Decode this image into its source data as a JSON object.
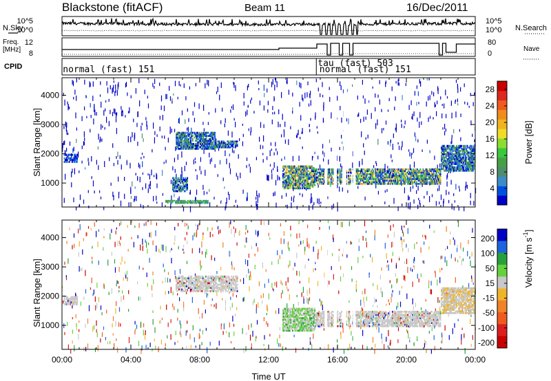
{
  "header": {
    "station": "Blackstone (fitACF)",
    "beam": "Beam 11",
    "date": "16/Dec/2011"
  },
  "top_panel": {
    "left_label_1": "N.Sky",
    "left_label_2": "Freq.",
    "left_label_3": "[MHz]",
    "left_label_4": "CPID",
    "right_label_1": "N.Search",
    "right_label_2": "Nave",
    "noise_ticks_left": [
      "10^5",
      "10^0"
    ],
    "noise_ticks_right": [
      "10^5",
      "10^0"
    ],
    "freq_ticks_left": [
      "12",
      "8"
    ],
    "nave_ticks_right": [
      "80",
      "0"
    ],
    "cpid_entries": [
      {
        "text": "normal (fast) 151",
        "start_hour": 0.05,
        "row": 1
      },
      {
        "text": "tau (fast) 503",
        "start_hour": 14.85,
        "row": 0
      },
      {
        "text": "normal (fast) 151",
        "start_hour": 14.95,
        "row": 1
      }
    ]
  },
  "chart_data": [
    {
      "type": "heatmap",
      "title": "",
      "xlabel": "Time UT",
      "ylabel": "Slant Range [km]",
      "x_range_hours": [
        0,
        24
      ],
      "x_ticks": [
        "00:00",
        "04:00",
        "08:00",
        "12:00",
        "16:00",
        "20:00",
        "00:00"
      ],
      "ylim": [
        180,
        4600
      ],
      "y_ticks": [
        1000,
        2000,
        3000,
        4000
      ],
      "colorbar": {
        "label": "Power [dB]",
        "ticks": [
          4,
          8,
          12,
          16,
          20,
          24,
          28
        ],
        "range": [
          0,
          30
        ],
        "colors": [
          "#0000c8",
          "#0050e0",
          "#3c8cc8",
          "#508c6e",
          "#46a046",
          "#3cc83c",
          "#8cdc32",
          "#f0dc28",
          "#f0b41e",
          "#f08c1e",
          "#f05a1e",
          "#dc281e",
          "#c80000"
        ]
      },
      "echo_regions": [
        {
          "t0": 0.1,
          "t1": 0.9,
          "r0": 1700,
          "r1": 2000,
          "level": "weak"
        },
        {
          "t0": 6.6,
          "t1": 8.9,
          "r0": 2150,
          "r1": 2750,
          "level": "moderate"
        },
        {
          "t0": 8.9,
          "t1": 10.2,
          "r0": 2200,
          "r1": 2450,
          "level": "moderate"
        },
        {
          "t0": 6.4,
          "t1": 7.3,
          "r0": 700,
          "r1": 1200,
          "level": "moderate"
        },
        {
          "t0": 6.0,
          "t1": 8.5,
          "r0": 300,
          "r1": 420,
          "level": "weak-green"
        },
        {
          "t0": 12.8,
          "t1": 14.7,
          "r0": 800,
          "r1": 1600,
          "level": "strong"
        },
        {
          "t0": 14.7,
          "t1": 22.0,
          "r0": 950,
          "r1": 1500,
          "level": "strong"
        },
        {
          "t0": 22.0,
          "t1": 24.0,
          "r0": 1400,
          "r1": 2300,
          "level": "moderate"
        }
      ]
    },
    {
      "type": "heatmap",
      "title": "",
      "xlabel": "Time UT",
      "ylabel": "Slant Range [km]",
      "x_range_hours": [
        0,
        24
      ],
      "ylim": [
        180,
        4600
      ],
      "y_ticks": [
        1000,
        2000,
        3000,
        4000
      ],
      "colorbar": {
        "label": "Velocity [m s^-1]",
        "ticks": [
          200,
          100,
          50,
          15,
          -15,
          -50,
          -100,
          -200
        ],
        "colors": [
          "#0000c8",
          "#1e64dc",
          "#28a03c",
          "#64d23c",
          "#c8c8c8",
          "#f0b428",
          "#f08228",
          "#f05a1e",
          "#dc1e1e",
          "#c80000"
        ]
      },
      "echo_regions": [
        {
          "t0": 0.1,
          "t1": 0.9,
          "r0": 1700,
          "r1": 2000,
          "velocity": "ground"
        },
        {
          "t0": 6.6,
          "t1": 10.2,
          "r0": 2150,
          "r1": 2700,
          "velocity": "ground"
        },
        {
          "t0": 12.8,
          "t1": 14.7,
          "r0": 800,
          "r1": 1600,
          "velocity": "mixed-green"
        },
        {
          "t0": 14.7,
          "t1": 22.0,
          "r0": 950,
          "r1": 1500,
          "velocity": "ground"
        },
        {
          "t0": 22.0,
          "t1": 24.0,
          "r0": 1400,
          "r1": 2300,
          "velocity": "ground-orange"
        }
      ]
    }
  ]
}
